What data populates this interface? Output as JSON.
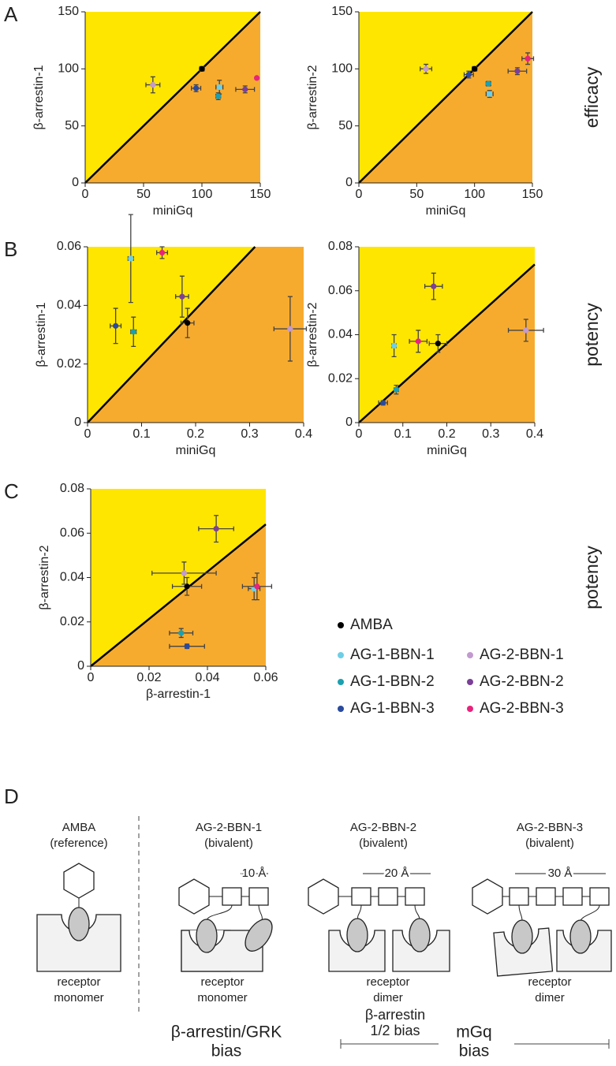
{
  "chart_data": [
    {
      "type": "scatter",
      "panel": "A",
      "x_label": "miniGq",
      "y_label": "β-arrestin-1",
      "xlim": [
        0,
        150
      ],
      "ylim": [
        0,
        150
      ],
      "xticks": [
        0,
        50,
        100,
        150
      ],
      "yticks": [
        0,
        50,
        100,
        150
      ],
      "diagonal": {
        "x": [
          0,
          150
        ],
        "y": [
          0,
          150
        ]
      },
      "series": [
        {
          "name": "AMBA",
          "color": "#000000",
          "x": [
            100
          ],
          "values": [
            100
          ],
          "xerr": [
            2
          ],
          "yerr": [
            2
          ]
        },
        {
          "name": "AG-1-BBN-1",
          "color": "#6dcfe6",
          "x": [
            115
          ],
          "values": [
            84
          ],
          "xerr": [
            3
          ],
          "yerr": [
            6
          ]
        },
        {
          "name": "AG-1-BBN-2",
          "color": "#1ca0b0",
          "x": [
            114
          ],
          "values": [
            76
          ],
          "xerr": [
            2
          ],
          "yerr": [
            3
          ]
        },
        {
          "name": "AG-1-BBN-3",
          "color": "#2a4a9e",
          "x": [
            95
          ],
          "values": [
            83
          ],
          "xerr": [
            4
          ],
          "yerr": [
            3
          ]
        },
        {
          "name": "AG-2-BBN-1",
          "color": "#c29ad0",
          "x": [
            58
          ],
          "values": [
            86
          ],
          "xerr": [
            6
          ],
          "yerr": [
            7
          ]
        },
        {
          "name": "AG-2-BBN-2",
          "color": "#7b3f98",
          "x": [
            137
          ],
          "values": [
            82
          ],
          "xerr": [
            8
          ],
          "yerr": [
            3
          ]
        },
        {
          "name": "AG-2-BBN-3",
          "color": "#e8237c",
          "x": [
            147
          ],
          "values": [
            92
          ],
          "xerr": [
            0
          ],
          "yerr": [
            0
          ]
        }
      ]
    },
    {
      "type": "scatter",
      "x_label": "miniGq",
      "y_label": "β-arrestin-2",
      "side_label": "efficacy",
      "xlim": [
        0,
        150
      ],
      "ylim": [
        0,
        150
      ],
      "xticks": [
        0,
        50,
        100,
        150
      ],
      "yticks": [
        0,
        50,
        100,
        150
      ],
      "diagonal": {
        "x": [
          0,
          150
        ],
        "y": [
          0,
          150
        ]
      },
      "series": [
        {
          "name": "AMBA",
          "color": "#000000",
          "x": [
            100
          ],
          "values": [
            100
          ],
          "xerr": [
            2
          ],
          "yerr": [
            2
          ]
        },
        {
          "name": "AG-1-BBN-1",
          "color": "#6dcfe6",
          "x": [
            113
          ],
          "values": [
            78
          ],
          "xerr": [
            3
          ],
          "yerr": [
            3
          ]
        },
        {
          "name": "AG-1-BBN-2",
          "color": "#1ca0b0",
          "x": [
            112
          ],
          "values": [
            87
          ],
          "xerr": [
            2
          ],
          "yerr": [
            2
          ]
        },
        {
          "name": "AG-1-BBN-3",
          "color": "#2a4a9e",
          "x": [
            95
          ],
          "values": [
            95
          ],
          "xerr": [
            4
          ],
          "yerr": [
            3
          ]
        },
        {
          "name": "AG-2-BBN-1",
          "color": "#c29ad0",
          "x": [
            58
          ],
          "values": [
            100
          ],
          "xerr": [
            5
          ],
          "yerr": [
            4
          ]
        },
        {
          "name": "AG-2-BBN-2",
          "color": "#7b3f98",
          "x": [
            137
          ],
          "values": [
            98
          ],
          "xerr": [
            8
          ],
          "yerr": [
            3
          ]
        },
        {
          "name": "AG-2-BBN-3",
          "color": "#e8237c",
          "x": [
            146
          ],
          "values": [
            109
          ],
          "xerr": [
            5
          ],
          "yerr": [
            5
          ]
        }
      ]
    },
    {
      "type": "scatter",
      "panel": "B",
      "x_label": "miniGq",
      "y_label": "β-arrestin-1",
      "xlim": [
        0,
        0.4
      ],
      "ylim": [
        0,
        0.06
      ],
      "xticks": [
        0,
        0.1,
        0.2,
        0.3,
        0.4
      ],
      "yticks": [
        0,
        0.02,
        0.04,
        0.06
      ],
      "diagonal": {
        "x": [
          0,
          0.31
        ],
        "y": [
          0,
          0.06
        ]
      },
      "series": [
        {
          "name": "AMBA",
          "color": "#000000",
          "x": [
            0.185
          ],
          "values": [
            0.034
          ],
          "xerr": [
            0.012
          ],
          "yerr": [
            0.005
          ]
        },
        {
          "name": "AG-1-BBN-1",
          "color": "#6dcfe6",
          "x": [
            0.08
          ],
          "values": [
            0.056
          ],
          "xerr": [
            0.005
          ],
          "yerr": [
            0.015
          ]
        },
        {
          "name": "AG-1-BBN-2",
          "color": "#1ca0b0",
          "x": [
            0.085
          ],
          "values": [
            0.031
          ],
          "xerr": [
            0.005
          ],
          "yerr": [
            0.005
          ]
        },
        {
          "name": "AG-1-BBN-3",
          "color": "#2a4a9e",
          "x": [
            0.052
          ],
          "values": [
            0.033
          ],
          "xerr": [
            0.01
          ],
          "yerr": [
            0.006
          ]
        },
        {
          "name": "AG-2-BBN-1",
          "color": "#c29ad0",
          "x": [
            0.375
          ],
          "values": [
            0.032
          ],
          "xerr": [
            0.03
          ],
          "yerr": [
            0.011
          ]
        },
        {
          "name": "AG-2-BBN-2",
          "color": "#7b3f98",
          "x": [
            0.175
          ],
          "values": [
            0.043
          ],
          "xerr": [
            0.012
          ],
          "yerr": [
            0.007
          ]
        },
        {
          "name": "AG-2-BBN-3",
          "color": "#e8237c",
          "x": [
            0.138
          ],
          "values": [
            0.058
          ],
          "xerr": [
            0.01
          ],
          "yerr": [
            0.002
          ]
        }
      ]
    },
    {
      "type": "scatter",
      "x_label": "miniGq",
      "y_label": "β-arrestin-2",
      "side_label": "potency",
      "xlim": [
        0,
        0.4
      ],
      "ylim": [
        0,
        0.08
      ],
      "xticks": [
        0,
        0.1,
        0.2,
        0.3,
        0.4
      ],
      "yticks": [
        0,
        0.02,
        0.04,
        0.06,
        0.08
      ],
      "diagonal": {
        "x": [
          0,
          0.4
        ],
        "y": [
          0,
          0.072
        ]
      },
      "series": [
        {
          "name": "AMBA",
          "color": "#000000",
          "x": [
            0.18
          ],
          "values": [
            0.036
          ],
          "xerr": [
            0.02
          ],
          "yerr": [
            0.004
          ]
        },
        {
          "name": "AG-1-BBN-1",
          "color": "#6dcfe6",
          "x": [
            0.08
          ],
          "values": [
            0.035
          ],
          "xerr": [
            0.005
          ],
          "yerr": [
            0.005
          ]
        },
        {
          "name": "AG-1-BBN-2",
          "color": "#1ca0b0",
          "x": [
            0.085
          ],
          "values": [
            0.015
          ],
          "xerr": [
            0.005
          ],
          "yerr": [
            0.002
          ]
        },
        {
          "name": "AG-1-BBN-3",
          "color": "#2a4a9e",
          "x": [
            0.055
          ],
          "values": [
            0.009
          ],
          "xerr": [
            0.01
          ],
          "yerr": [
            0.001
          ]
        },
        {
          "name": "AG-2-BBN-1",
          "color": "#c29ad0",
          "x": [
            0.38
          ],
          "values": [
            0.042
          ],
          "xerr": [
            0.04
          ],
          "yerr": [
            0.005
          ]
        },
        {
          "name": "AG-2-BBN-2",
          "color": "#7b3f98",
          "x": [
            0.17
          ],
          "values": [
            0.062
          ],
          "xerr": [
            0.02
          ],
          "yerr": [
            0.006
          ]
        },
        {
          "name": "AG-2-BBN-3",
          "color": "#e8237c",
          "x": [
            0.135
          ],
          "values": [
            0.037
          ],
          "xerr": [
            0.02
          ],
          "yerr": [
            0.005
          ]
        }
      ]
    },
    {
      "type": "scatter",
      "panel": "C",
      "x_label": "β-arrestin-1",
      "y_label": "β-arrestin-2",
      "side_label": "potency",
      "xlim": [
        0,
        0.06
      ],
      "ylim": [
        0,
        0.08
      ],
      "xticks": [
        0,
        0.02,
        0.04,
        0.06
      ],
      "yticks": [
        0,
        0.02,
        0.04,
        0.06,
        0.08
      ],
      "diagonal": {
        "x": [
          0,
          0.06
        ],
        "y": [
          0,
          0.064
        ]
      },
      "series": [
        {
          "name": "AMBA",
          "color": "#000000",
          "x": [
            0.033
          ],
          "values": [
            0.036
          ],
          "xerr": [
            0.005
          ],
          "yerr": [
            0.004
          ]
        },
        {
          "name": "AG-1-BBN-1",
          "color": "#6dcfe6",
          "x": [
            0.056
          ],
          "values": [
            0.035
          ],
          "xerr": [
            0.002
          ],
          "yerr": [
            0.005
          ]
        },
        {
          "name": "AG-1-BBN-2",
          "color": "#1ca0b0",
          "x": [
            0.031
          ],
          "values": [
            0.015
          ],
          "xerr": [
            0.004
          ],
          "yerr": [
            0.002
          ]
        },
        {
          "name": "AG-1-BBN-3",
          "color": "#2a4a9e",
          "x": [
            0.033
          ],
          "values": [
            0.009
          ],
          "xerr": [
            0.006
          ],
          "yerr": [
            0.001
          ]
        },
        {
          "name": "AG-2-BBN-1",
          "color": "#c29ad0",
          "x": [
            0.032
          ],
          "values": [
            0.042
          ],
          "xerr": [
            0.011
          ],
          "yerr": [
            0.005
          ]
        },
        {
          "name": "AG-2-BBN-2",
          "color": "#7b3f98",
          "x": [
            0.043
          ],
          "values": [
            0.062
          ],
          "xerr": [
            0.006
          ],
          "yerr": [
            0.006
          ]
        },
        {
          "name": "AG-2-BBN-3",
          "color": "#e8237c",
          "x": [
            0.057
          ],
          "values": [
            0.036
          ],
          "xerr": [
            0.005
          ],
          "yerr": [
            0.006
          ]
        }
      ]
    }
  ],
  "diagram": {
    "panel": "D",
    "columns": [
      {
        "name": "AMBA",
        "note": "(reference)",
        "receptor": "receptor",
        "state": "monomer"
      },
      {
        "name": "AG-2-BBN-1",
        "note": "(bivalent)",
        "spacing": "10 Å",
        "receptor": "receptor",
        "state": "monomer"
      },
      {
        "name": "AG-2-BBN-2",
        "note": "(bivalent)",
        "spacing": "20 Å",
        "receptor": "receptor",
        "state": "dimer"
      },
      {
        "name": "AG-2-BBN-3",
        "note": "(bivalent)",
        "spacing": "30 Å",
        "receptor": "receptor",
        "state": "dimer"
      }
    ],
    "bias_scale": {
      "left": [
        "β-arrestin/GRK",
        "bias"
      ],
      "middle": [
        "β-arrestin",
        "1/2 bias"
      ],
      "right": [
        "mGq",
        "bias"
      ]
    }
  }
}
